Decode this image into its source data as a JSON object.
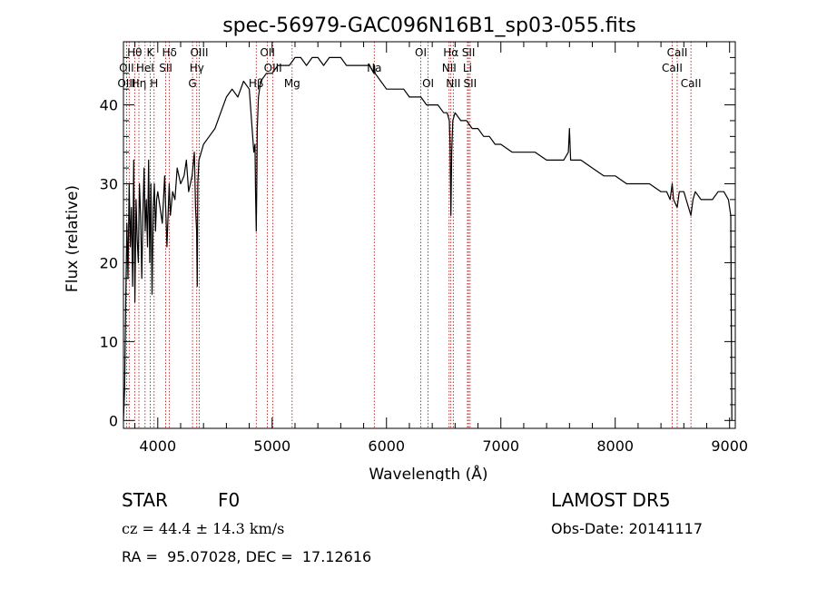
{
  "chart_data": {
    "type": "line",
    "title": "spec-56979-GAC096N16B1_sp03-055.fits",
    "xlabel": "Wavelength (Å)",
    "ylabel": "Flux (relative)",
    "xlim": [
      3700,
      9050
    ],
    "ylim": [
      -1,
      48
    ],
    "xticks": [
      {
        "value": 4000,
        "label": "4000"
      },
      {
        "value": 5000,
        "label": "5000"
      },
      {
        "value": 6000,
        "label": "6000"
      },
      {
        "value": 7000,
        "label": "7000"
      },
      {
        "value": 8000,
        "label": "8000"
      },
      {
        "value": 9000,
        "label": "9000"
      }
    ],
    "yticks": [
      {
        "value": 0,
        "label": "0"
      },
      {
        "value": 10,
        "label": "10"
      },
      {
        "value": 20,
        "label": "20"
      },
      {
        "value": 30,
        "label": "30"
      },
      {
        "value": 40,
        "label": "40"
      }
    ],
    "grid": false,
    "series": [
      {
        "color": "#000000",
        "x": [
          3700,
          3710,
          3720,
          3730,
          3740,
          3750,
          3760,
          3770,
          3780,
          3790,
          3800,
          3810,
          3820,
          3830,
          3840,
          3850,
          3860,
          3870,
          3880,
          3890,
          3900,
          3910,
          3920,
          3930,
          3940,
          3950,
          3960,
          3970,
          3980,
          3990,
          4000,
          4020,
          4040,
          4060,
          4080,
          4100,
          4110,
          4130,
          4150,
          4170,
          4200,
          4230,
          4250,
          4270,
          4300,
          4320,
          4330,
          4340,
          4345,
          4350,
          4360,
          4380,
          4400,
          4450,
          4500,
          4550,
          4600,
          4650,
          4700,
          4750,
          4800,
          4820,
          4840,
          4850,
          4855,
          4861,
          4866,
          4870,
          4880,
          4900,
          4950,
          5000,
          5050,
          5100,
          5150,
          5200,
          5250,
          5300,
          5350,
          5400,
          5450,
          5500,
          5550,
          5600,
          5650,
          5700,
          5750,
          5800,
          5850,
          5890,
          5895,
          5900,
          5950,
          6000,
          6050,
          6100,
          6150,
          6200,
          6250,
          6300,
          6350,
          6400,
          6450,
          6500,
          6530,
          6550,
          6556,
          6563,
          6570,
          6580,
          6600,
          6650,
          6700,
          6750,
          6800,
          6850,
          6900,
          6950,
          7000,
          7100,
          7200,
          7300,
          7400,
          7500,
          7550,
          7590,
          7600,
          7610,
          7620,
          7650,
          7700,
          7800,
          7900,
          8000,
          8100,
          8200,
          8300,
          8400,
          8450,
          8480,
          8498,
          8510,
          8542,
          8560,
          8600,
          8662,
          8680,
          8700,
          8750,
          8800,
          8850,
          8900,
          8950,
          8990,
          9000,
          9010,
          9020
        ],
        "y": [
          0,
          4,
          15,
          25,
          18,
          30,
          22,
          27,
          17,
          33,
          15,
          28,
          23,
          20,
          30,
          26,
          18,
          26,
          32,
          24,
          28,
          22,
          33,
          20,
          30,
          16,
          27,
          30,
          24,
          28,
          29,
          27,
          25,
          31,
          22,
          30,
          26,
          29,
          28,
          32,
          30,
          31,
          33,
          29,
          31,
          34,
          27,
          24,
          17,
          30,
          33,
          34,
          35,
          36,
          37,
          39,
          41,
          42,
          41,
          43,
          42,
          38,
          34,
          35,
          29,
          24,
          30,
          37,
          41,
          43,
          44,
          44,
          45,
          45,
          45,
          46,
          46,
          45,
          46,
          46,
          45,
          46,
          46,
          46,
          45,
          45,
          45,
          45,
          45,
          44,
          45,
          44,
          43,
          42,
          42,
          42,
          42,
          41,
          41,
          41,
          40,
          40,
          40,
          39,
          39,
          38,
          35,
          26,
          34,
          38,
          39,
          38,
          38,
          37,
          37,
          36,
          36,
          35,
          35,
          34,
          34,
          34,
          33,
          33,
          33,
          34,
          37,
          33,
          33,
          33,
          33,
          32,
          31,
          31,
          30,
          30,
          30,
          29,
          29,
          28,
          30,
          28,
          27,
          29,
          29,
          26,
          28,
          29,
          28,
          28,
          28,
          29,
          29,
          28,
          27,
          26,
          0
        ]
      }
    ],
    "annotations": [
      {
        "text": "Hθ",
        "x": 3798,
        "row": 1
      },
      {
        "text": "K",
        "x": 3934,
        "row": 1
      },
      {
        "text": "Hδ",
        "x": 4102,
        "row": 1
      },
      {
        "text": "OIII",
        "x": 4363,
        "row": 1
      },
      {
        "text": "OII",
        "x": 4959,
        "row": 1
      },
      {
        "text": "OI",
        "x": 6300,
        "row": 1
      },
      {
        "text": "Hα",
        "x": 6563,
        "row": 1
      },
      {
        "text": "SII",
        "x": 6717,
        "row": 1
      },
      {
        "text": "CaII",
        "x": 8542,
        "row": 1
      },
      {
        "text": "OII",
        "x": 3727,
        "row": 2
      },
      {
        "text": "HeI",
        "x": 3889,
        "row": 2
      },
      {
        "text": "SII",
        "x": 4070,
        "row": 2
      },
      {
        "text": "Hγ",
        "x": 4341,
        "row": 2
      },
      {
        "text": "OIII",
        "x": 5007,
        "row": 2
      },
      {
        "text": "Na",
        "x": 5893,
        "row": 2
      },
      {
        "text": "NII",
        "x": 6548,
        "row": 2
      },
      {
        "text": "Li",
        "x": 6708,
        "row": 2
      },
      {
        "text": "CaII",
        "x": 8498,
        "row": 2
      },
      {
        "text": "OIII",
        "x": 3727,
        "row": 3
      },
      {
        "text": "Hη",
        "x": 3835,
        "row": 3
      },
      {
        "text": "H",
        "x": 3968,
        "row": 3
      },
      {
        "text": "G",
        "x": 4304,
        "row": 3
      },
      {
        "text": "Hβ",
        "x": 4861,
        "row": 3
      },
      {
        "text": "Mg",
        "x": 5175,
        "row": 3
      },
      {
        "text": "OI",
        "x": 6364,
        "row": 3
      },
      {
        "text": "NII",
        "x": 6584,
        "row": 3
      },
      {
        "text": "SII",
        "x": 6731,
        "row": 3
      },
      {
        "text": "CaII",
        "x": 8662,
        "row": 3
      }
    ],
    "line_markers": [
      3727,
      3750,
      3798,
      3835,
      3889,
      3934,
      3968,
      4070,
      4102,
      4304,
      4341,
      4363,
      4861,
      4959,
      5007,
      5175,
      5893,
      6300,
      6364,
      6548,
      6563,
      6584,
      6708,
      6717,
      6731,
      8498,
      8542,
      8662
    ],
    "colors": {
      "spectrum": "#000000",
      "markers": "#b00000"
    }
  },
  "info": {
    "class": "STAR",
    "subclass": "F0",
    "cz": "cz = 44.4 ± 14.3 km/s",
    "coords": "RA =  95.07028, DEC =  17.12616",
    "survey": "LAMOST DR5",
    "obs_date": "Obs-Date: 20141117"
  }
}
